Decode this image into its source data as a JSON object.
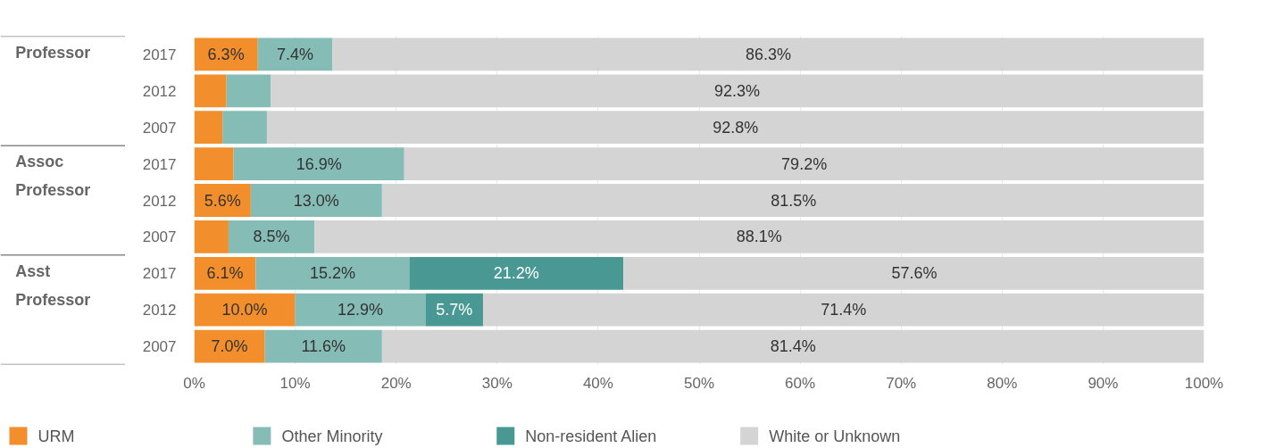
{
  "chart_data": {
    "type": "bar",
    "orientation": "horizontal",
    "stacked": true,
    "categories": [
      "2017",
      "2012",
      "2007",
      "2017",
      "2012",
      "2007",
      "2017",
      "2012",
      "2007"
    ],
    "annotations": [
      "Professor",
      "Assoc Professor",
      "Asst Professor"
    ],
    "series": [
      {
        "name": "URM",
        "color": "#f28e2b",
        "values": [
          6.3,
          3.2,
          2.8,
          3.9,
          5.6,
          3.4,
          6.1,
          10.0,
          7.0
        ],
        "value_labels": [
          "6.3%",
          null,
          null,
          null,
          "5.6%",
          null,
          "6.1%",
          "10.0%",
          "7.0%"
        ]
      },
      {
        "name": "Other Minority",
        "color": "#86bcb6",
        "values": [
          7.4,
          4.4,
          4.4,
          16.9,
          13.0,
          8.5,
          15.2,
          12.9,
          11.6
        ],
        "value_labels": [
          "7.4%",
          null,
          null,
          "16.9%",
          "13.0%",
          "8.5%",
          "15.2%",
          "12.9%",
          "11.6%"
        ]
      },
      {
        "name": "Non-resident Alien",
        "color": "#499894",
        "values": [
          0,
          0,
          0,
          0,
          0,
          0,
          21.2,
          5.7,
          0
        ],
        "value_labels": [
          null,
          null,
          null,
          null,
          null,
          null,
          "21.2%",
          "5.7%",
          null
        ]
      },
      {
        "name": "White or Unknown",
        "color": "#d4d4d4",
        "values": [
          86.3,
          92.3,
          92.8,
          79.2,
          81.5,
          88.1,
          57.6,
          71.4,
          81.4
        ],
        "value_labels": [
          "86.3%",
          "92.3%",
          "92.8%",
          "79.2%",
          "81.5%",
          "88.1%",
          "57.6%",
          "71.4%",
          "81.4%"
        ]
      }
    ],
    "xlim": [
      0,
      100
    ],
    "xticks": [
      {
        "value": 0,
        "label": "0%"
      },
      {
        "value": 10,
        "label": "10%"
      },
      {
        "value": 20,
        "label": "20%"
      },
      {
        "value": 30,
        "label": "30%"
      },
      {
        "value": 40,
        "label": "40%"
      },
      {
        "value": 50,
        "label": "50%"
      },
      {
        "value": 60,
        "label": "60%"
      },
      {
        "value": 70,
        "label": "70%"
      },
      {
        "value": 80,
        "label": "80%"
      },
      {
        "value": 90,
        "label": "90%"
      },
      {
        "value": 100,
        "label": "100%"
      }
    ],
    "grid": "x",
    "legend": "bottom"
  }
}
